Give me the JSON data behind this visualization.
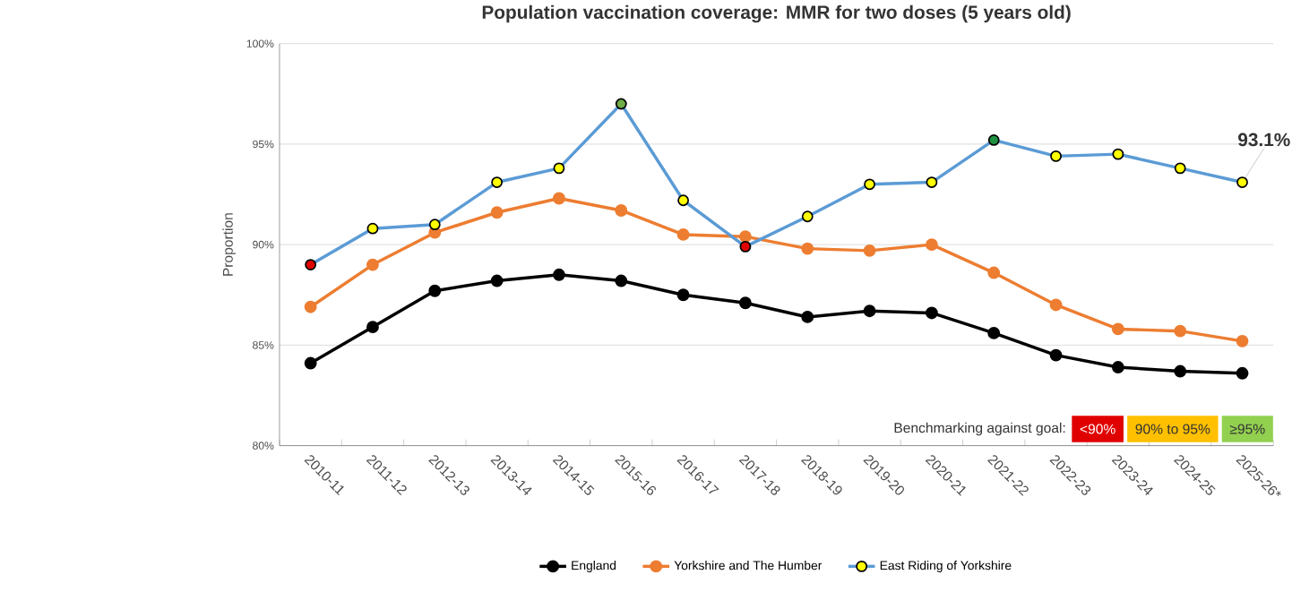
{
  "chart_data": {
    "type": "line",
    "title": "Population vaccination coverage: MMR for two doses (5 years old)",
    "ylabel": "Proportion",
    "categories": [
      "2010-11",
      "2011-12",
      "2012-13",
      "2013-14",
      "2014-15",
      "2015-16",
      "2016-17",
      "2017-18",
      "2018-19",
      "2019-20",
      "2020-21",
      "2021-22",
      "2022-23",
      "2023-24",
      "2024-25",
      "2025-26*"
    ],
    "series": [
      {
        "name": "England",
        "color": "#000000",
        "values": [
          84.1,
          85.9,
          87.7,
          88.2,
          88.5,
          88.2,
          87.5,
          87.1,
          86.4,
          86.7,
          86.6,
          85.6,
          84.5,
          83.9,
          83.7,
          83.6
        ]
      },
      {
        "name": "Yorkshire and The Humber",
        "color": "#ed7d31",
        "values": [
          86.9,
          89.0,
          90.6,
          91.6,
          92.3,
          91.7,
          90.5,
          90.4,
          89.8,
          89.7,
          90.0,
          88.6,
          87.0,
          85.8,
          85.7,
          85.2
        ]
      },
      {
        "name": "East Riding of Yorkshire",
        "color": "#5b9bd5",
        "values": [
          89.0,
          90.8,
          91.0,
          93.1,
          93.8,
          97.0,
          92.2,
          89.9,
          91.4,
          93.0,
          93.1,
          95.2,
          94.4,
          94.5,
          93.8,
          93.1
        ],
        "colors": [
          "#e00000",
          "#ffff00",
          "#ffff00",
          "#ffff00",
          "#ffff00",
          "#70ad47",
          "#ffff00",
          "#e00000",
          "#ffff00",
          "#ffff00",
          "#ffff00",
          "#1e9040",
          "#ffff00",
          "#ffff00",
          "#ffff00",
          "#ffff00"
        ],
        "value_labels": [
          null,
          null,
          null,
          null,
          null,
          null,
          null,
          null,
          null,
          null,
          null,
          null,
          null,
          null,
          null,
          "93.1%"
        ]
      }
    ],
    "ylim": [
      80,
      100
    ],
    "yticks": [
      {
        "value": 80,
        "label": "80%"
      },
      {
        "value": 85,
        "label": "85%"
      },
      {
        "value": 90,
        "label": "90%"
      },
      {
        "value": 95,
        "label": "95%"
      },
      {
        "value": 100,
        "label": "100%"
      }
    ],
    "grid": "y",
    "legend": "bottom",
    "marker": "circle",
    "line_style": "solid",
    "annotations": [
      "Benchmarking against goal:",
      "<90%",
      "90% to 95%",
      "≥95%"
    ]
  }
}
